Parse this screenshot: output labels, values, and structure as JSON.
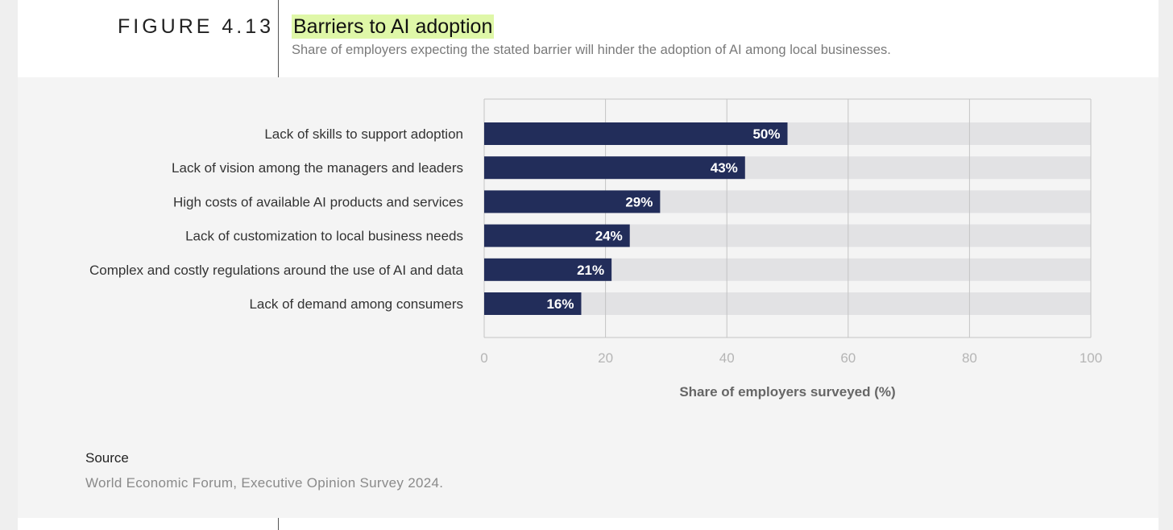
{
  "figure": {
    "label": "FIGURE 4.13",
    "title": "Barriers to AI adoption",
    "subtitle": "Share of employers expecting the stated barrier will hinder the adoption of AI among local businesses."
  },
  "chart_data": {
    "type": "bar",
    "orientation": "horizontal",
    "categories": [
      "Lack of skills to support adoption",
      "Lack of vision among the managers and leaders",
      "High costs of available AI products and services",
      "Lack of customization to local business needs",
      "Complex and costly regulations around the use of AI and data",
      "Lack of demand among consumers"
    ],
    "values": [
      50,
      43,
      29,
      24,
      21,
      16
    ],
    "value_labels": [
      "50%",
      "43%",
      "29%",
      "24%",
      "21%",
      "16%"
    ],
    "xlabel": "Share of employers surveyed (%)",
    "xlim": [
      0,
      100
    ],
    "xticks": [
      0,
      20,
      40,
      60,
      80,
      100
    ],
    "grid": true,
    "colors": {
      "bar": "#222d5a",
      "track": "#e2e2e4",
      "grid": "#c4c4c4",
      "tick_label": "#b5b5b5",
      "category_label": "#333333",
      "axis_title": "#666666"
    }
  },
  "source": {
    "label": "Source",
    "text": "World Economic Forum, Executive Opinion Survey 2024."
  }
}
